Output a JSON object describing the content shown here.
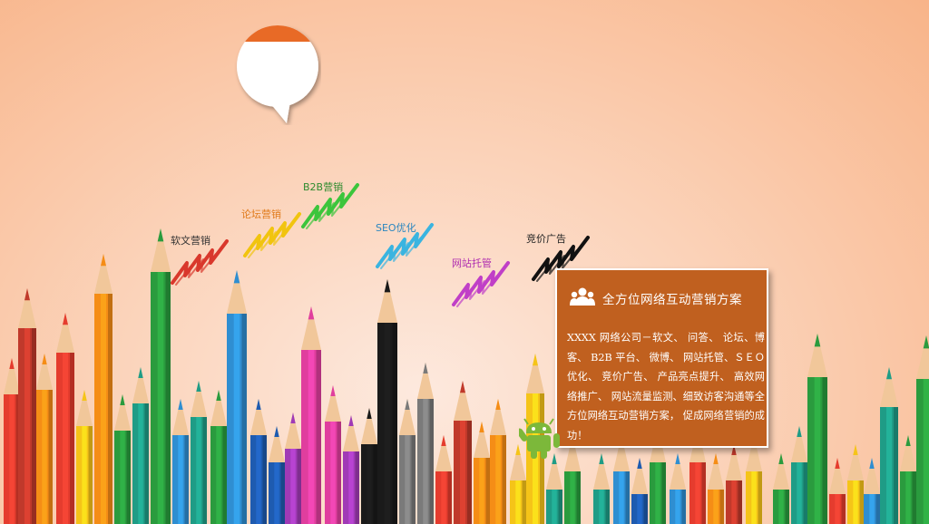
{
  "scene": {
    "background_colors": [
      "#fde9de",
      "#f8b489"
    ],
    "speech_bubble": {
      "cap_color": "#e86b28",
      "body_color": "#ffffff"
    },
    "pencil_colors": [
      "#e53c2e",
      "#f58d16",
      "#f5c418",
      "#2a9b3e",
      "#1f9c86",
      "#2f8ed1",
      "#1e5bb0",
      "#a03ab6",
      "#e03e9e",
      "#1a1a1a",
      "#7a7a7a",
      "#c0392b"
    ]
  },
  "labels": [
    {
      "text": "软文营销",
      "color": "#333333",
      "scribble_color": "#d9382c",
      "icon": "scribble"
    },
    {
      "text": "论坛营销",
      "color": "#e07a1a",
      "scribble_color": "#f1c40f",
      "icon": "scribble"
    },
    {
      "text": "B2B营销",
      "color": "#2e8b2e",
      "scribble_color": "#3cc53c",
      "icon": "scribble"
    },
    {
      "text": "SEO优化",
      "color": "#2a86c0",
      "scribble_color": "#3ab4e0",
      "icon": "scribble"
    },
    {
      "text": "网站托管",
      "color": "#b02fb0",
      "scribble_color": "#c03fc7",
      "icon": "scribble"
    },
    {
      "text": "竞价广告",
      "color": "#222222",
      "scribble_color": "#111111",
      "icon": "scribble"
    }
  ],
  "card": {
    "icon": "group-people-icon",
    "title": "全方位网络互动营销方案",
    "body": "XXXX 网络公司－软文、 问答、 论坛、博客、 B2B 平台、 微博、 网站托管、ＳＥＯ优化、 竞价广告、 产品亮点提升、 高效网络推广、 网站流量监测、细致访客沟通等全方位网络互动营销方案， 促成网络营销的成功！",
    "background": "#c0601f"
  },
  "mascot": {
    "icon": "android-robot-icon",
    "color": "#7cb83a"
  }
}
